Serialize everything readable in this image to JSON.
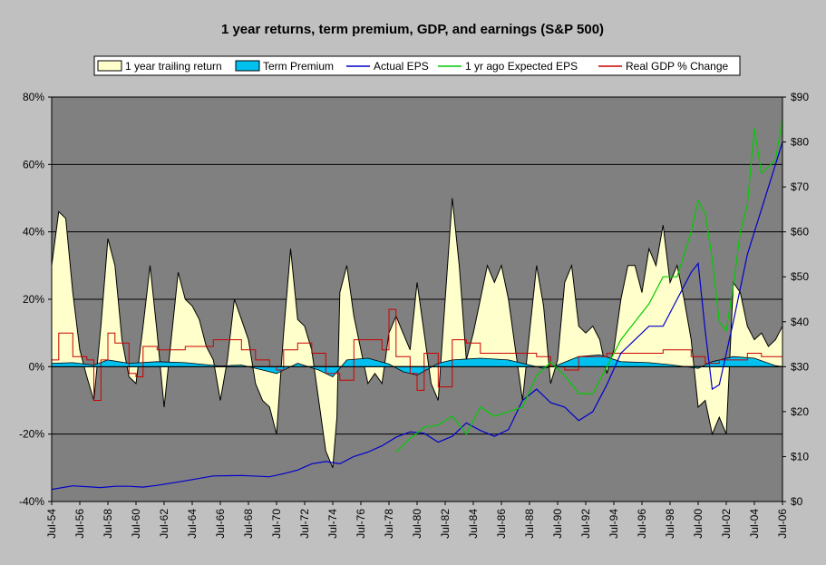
{
  "chart_data": {
    "type": "line",
    "title": "1 year returns, term premium, GDP, and earnings (S&P 500)",
    "x_tick_labels": [
      "Jul-54",
      "Jul-56",
      "Jul-58",
      "Jul-60",
      "Jul-62",
      "Jul-64",
      "Jul-66",
      "Jul-68",
      "Jul-70",
      "Jul-72",
      "Jul-74",
      "Jul-76",
      "Jul-78",
      "Jul-80",
      "Jul-82",
      "Jul-84",
      "Jul-86",
      "Jul-88",
      "Jul-90",
      "Jul-92",
      "Jul-94",
      "Jul-96",
      "Jul-98",
      "Jul-00",
      "Jul-02",
      "Jul-04",
      "Jul-06"
    ],
    "y_left": {
      "ticks": [
        "-40%",
        "-20%",
        "0%",
        "20%",
        "40%",
        "60%",
        "80%"
      ],
      "ylim": [
        -40,
        80
      ],
      "unit": "%"
    },
    "y_right": {
      "ticks": [
        "$0",
        "$10",
        "$20",
        "$30",
        "$40",
        "$50",
        "$60",
        "$70",
        "$80",
        "$90"
      ],
      "ylim": [
        0,
        90
      ],
      "unit": "$"
    },
    "grid": "horizontal major gridlines",
    "legend_placement": "top",
    "colors": {
      "plot_background": "#808080",
      "page_background": "#c0c0c0",
      "trailing_return_fill": "#ffffcc",
      "term_premium_fill": "#00c0f0",
      "actual_eps": "#0000cc",
      "expected_eps": "#00cc00",
      "real_gdp": "#cc0000"
    },
    "series": [
      {
        "name": "1 year trailing return",
        "type": "area",
        "axis": "left",
        "x": [
          1954.5,
          1955.0,
          1955.5,
          1956.0,
          1956.5,
          1957.0,
          1957.5,
          1958.0,
          1958.5,
          1959.0,
          1959.5,
          1960.0,
          1960.5,
          1961.0,
          1961.5,
          1962.0,
          1962.5,
          1963.0,
          1963.5,
          1964.0,
          1964.5,
          1965.0,
          1965.5,
          1966.0,
          1966.5,
          1967.0,
          1967.5,
          1968.0,
          1968.5,
          1969.0,
          1969.5,
          1970.0,
          1970.5,
          1971.0,
          1971.5,
          1972.0,
          1972.5,
          1973.0,
          1973.5,
          1974.0,
          1974.5,
          1974.8,
          1975.0,
          1975.5,
          1976.0,
          1976.5,
          1977.0,
          1977.5,
          1978.0,
          1978.5,
          1979.0,
          1979.5,
          1980.0,
          1980.5,
          1981.0,
          1981.5,
          1982.0,
          1982.5,
          1983.0,
          1983.5,
          1984.0,
          1984.5,
          1985.0,
          1985.5,
          1986.0,
          1986.5,
          1987.0,
          1987.5,
          1988.0,
          1988.5,
          1989.0,
          1989.5,
          1990.0,
          1990.5,
          1991.0,
          1991.5,
          1992.0,
          1992.5,
          1993.0,
          1993.5,
          1994.0,
          1994.5,
          1995.0,
          1995.5,
          1996.0,
          1996.5,
          1997.0,
          1997.5,
          1998.0,
          1998.5,
          1999.0,
          1999.5,
          2000.0,
          2000.5,
          2001.0,
          2001.5,
          2002.0,
          2002.5,
          2003.0,
          2003.5,
          2004.0,
          2004.5,
          2005.0,
          2005.5,
          2006.0,
          2006.5
        ],
        "values": [
          30,
          46,
          44,
          22,
          5,
          -3,
          -10,
          12,
          38,
          30,
          8,
          -3,
          -5,
          12,
          30,
          10,
          -12,
          8,
          28,
          20,
          18,
          14,
          6,
          2,
          -10,
          2,
          20,
          14,
          8,
          -5,
          -10,
          -12,
          -20,
          10,
          35,
          14,
          12,
          5,
          -10,
          -25,
          -30,
          -15,
          22,
          30,
          15,
          5,
          -5,
          -2,
          -5,
          10,
          15,
          10,
          5,
          25,
          10,
          -5,
          -10,
          20,
          50,
          30,
          2,
          10,
          20,
          30,
          25,
          30,
          20,
          5,
          -10,
          10,
          30,
          18,
          -5,
          2,
          25,
          30,
          12,
          10,
          12,
          8,
          -2,
          5,
          20,
          30,
          30,
          22,
          35,
          30,
          42,
          25,
          30,
          20,
          8,
          -12,
          -10,
          -20,
          -15,
          -20,
          25,
          22,
          12,
          8,
          10,
          6,
          8,
          12
        ]
      },
      {
        "name": "Term Premium",
        "type": "area",
        "axis": "left",
        "x": [
          1954.5,
          1956,
          1957.5,
          1958.5,
          1960,
          1962,
          1964,
          1966.5,
          1968,
          1969.5,
          1970.5,
          1972,
          1973.5,
          1974.5,
          1975.5,
          1977,
          1978.5,
          1979.5,
          1980.5,
          1982,
          1983,
          1985,
          1987,
          1988.5,
          1989.5,
          1990.5,
          1992,
          1993.5,
          1995,
          1997,
          1998.5,
          2000.5,
          2001.5,
          2003,
          2004.5,
          2006,
          2006.5
        ],
        "values": [
          1,
          1.2,
          0.5,
          2,
          1,
          1.5,
          1.2,
          0.2,
          0.5,
          -1,
          -2,
          1,
          -1,
          -3,
          2,
          2.5,
          0.8,
          -1.5,
          -2.5,
          1,
          2,
          2.5,
          2,
          0.5,
          -0.5,
          0.5,
          3,
          3.5,
          1.5,
          1.2,
          0.6,
          -0.5,
          1.5,
          3,
          2.5,
          0.3,
          0
        ]
      },
      {
        "name": "Actual EPS",
        "type": "line",
        "axis": "right",
        "x": [
          1954.5,
          1956,
          1958,
          1959,
          1960,
          1961,
          1962,
          1964,
          1966,
          1968,
          1970,
          1971,
          1972,
          1973,
          1974,
          1975,
          1976,
          1977,
          1978,
          1979,
          1980,
          1981,
          1982,
          1983,
          1984,
          1985,
          1986,
          1987,
          1988,
          1989,
          1990,
          1991,
          1992,
          1993,
          1994,
          1995,
          1996,
          1997,
          1998,
          1999,
          2000,
          2000.5,
          2001,
          2001.5,
          2002,
          2003,
          2004,
          2005,
          2006,
          2006.5
        ],
        "values": [
          2.7,
          3.5,
          3.1,
          3.4,
          3.4,
          3.2,
          3.6,
          4.6,
          5.7,
          5.8,
          5.5,
          6.2,
          7,
          8.4,
          8.9,
          8.4,
          10,
          11,
          12.4,
          14.3,
          15.5,
          15.2,
          13.2,
          14.5,
          17.5,
          15.8,
          14.5,
          16,
          22.5,
          25,
          22,
          21,
          18,
          20,
          26,
          33,
          36,
          39,
          39,
          45,
          51,
          53,
          38,
          25,
          26,
          40,
          55,
          65,
          75,
          80
        ]
      },
      {
        "name": "1 yr ago Expected EPS",
        "type": "line",
        "axis": "right",
        "x": [
          1979,
          1980,
          1981,
          1982,
          1983,
          1984,
          1985,
          1986,
          1987,
          1988,
          1989,
          1990,
          1991,
          1992,
          1993,
          1994,
          1995,
          1996,
          1997,
          1998,
          1999,
          2000,
          2000.5,
          2001,
          2001.5,
          2002,
          2002.5,
          2003,
          2003.5,
          2004,
          2004.5,
          2005,
          2006,
          2006.5
        ],
        "values": [
          11,
          14,
          16.5,
          17,
          19,
          15,
          21,
          19,
          20,
          21,
          28,
          31,
          28,
          24,
          24,
          30,
          36,
          40,
          44,
          50,
          50,
          60,
          67,
          64,
          54,
          40,
          38,
          48,
          60,
          66,
          83,
          73,
          76,
          85
        ]
      },
      {
        "name": "Real GDP % Change",
        "type": "line",
        "axis": "left",
        "x": [
          1954.5,
          1955,
          1956,
          1957,
          1957.5,
          1958,
          1958.5,
          1959,
          1960,
          1960.5,
          1961,
          1962,
          1964,
          1966,
          1968,
          1969,
          1970,
          1970.5,
          1971,
          1972,
          1973,
          1974,
          1975,
          1976,
          1978,
          1978.5,
          1979,
          1980,
          1980.5,
          1981,
          1982,
          1983,
          1984,
          1985,
          1987,
          1989,
          1990,
          1991,
          1992,
          1994,
          1996,
          1998,
          2000,
          2001,
          2002,
          2004,
          2005,
          2006.5
        ],
        "values": [
          2,
          10,
          3,
          2,
          -10,
          2,
          10,
          7,
          -2,
          -3,
          6,
          5,
          6,
          8,
          5,
          2,
          0,
          -1,
          5,
          7,
          4,
          -2,
          -4,
          8,
          5,
          17,
          3,
          -2,
          -7,
          4,
          -6,
          8,
          7,
          4,
          4,
          3,
          0,
          -1,
          3,
          4,
          4,
          5,
          3,
          1,
          2,
          4,
          3,
          3
        ]
      }
    ]
  }
}
